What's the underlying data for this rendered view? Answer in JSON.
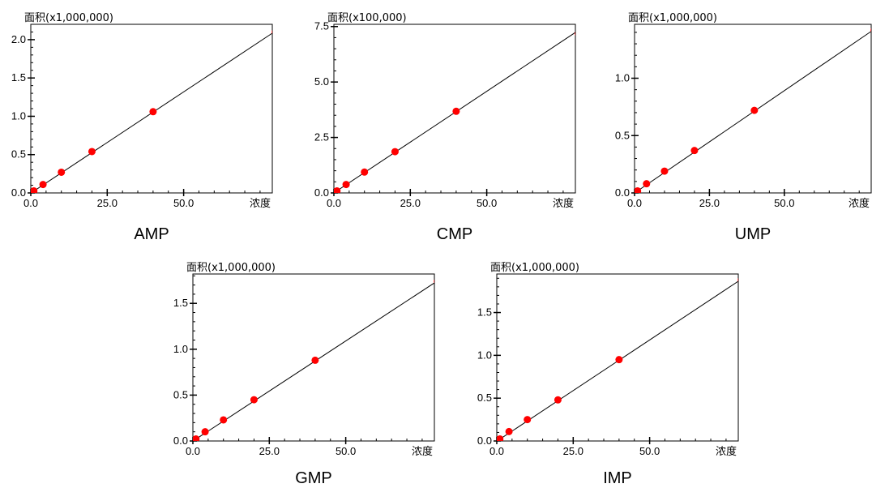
{
  "colors": {
    "point": "#ff0000",
    "line": "#000000",
    "axis": "#000000",
    "background": "#ffffff"
  },
  "chart_data": [
    {
      "type": "scatter",
      "title": "AMP",
      "ylabel": "面积(x1,000,000)",
      "xlabel": "浓度",
      "xlim": [
        0,
        79
      ],
      "ylim": [
        0,
        2.2
      ],
      "xticks": [
        0,
        25,
        50
      ],
      "xtick_labels": [
        "0.0",
        "25.0",
        "50.0"
      ],
      "yticks": [
        0,
        0.5,
        1.0,
        1.5,
        2.0
      ],
      "ytick_labels": [
        "0.0",
        "0.5",
        "1.0",
        "1.5",
        "2.0"
      ],
      "series": [
        {
          "x": [
            0.1,
            0.5,
            1.0,
            4.0,
            10.0,
            20.0,
            40.0,
            80.0
          ],
          "y": [
            0.003,
            0.013,
            0.027,
            0.11,
            0.27,
            0.54,
            1.06,
            2.1
          ]
        }
      ],
      "fit_line": {
        "x": [
          -2,
          83
        ],
        "y": [
          -0.055,
          2.19
        ]
      }
    },
    {
      "type": "scatter",
      "title": "CMP",
      "ylabel": "面积(x100,000)",
      "xlabel": "浓度",
      "xlim": [
        0,
        79
      ],
      "ylim": [
        0,
        7.6
      ],
      "xticks": [
        0,
        25,
        50
      ],
      "xtick_labels": [
        "0.0",
        "25.0",
        "50.0"
      ],
      "yticks": [
        0,
        2.5,
        5.0,
        7.5
      ],
      "ytick_labels": [
        "0.0",
        "2.5",
        "5.0",
        "7.5"
      ],
      "series": [
        {
          "x": [
            0.1,
            0.5,
            1.0,
            4.0,
            10.0,
            20.0,
            40.0,
            80.0
          ],
          "y": [
            0.01,
            0.05,
            0.09,
            0.38,
            0.94,
            1.86,
            3.68,
            7.18
          ]
        }
      ],
      "fit_line": {
        "x": [
          -2,
          83
        ],
        "y": [
          -0.18,
          7.6
        ]
      }
    },
    {
      "type": "scatter",
      "title": "UMP",
      "ylabel": "面积(x1,000,000)",
      "xlabel": "浓度",
      "xlim": [
        0,
        79
      ],
      "ylim": [
        0,
        1.47
      ],
      "xticks": [
        0,
        25,
        50
      ],
      "xtick_labels": [
        "0.0",
        "25.0",
        "50.0"
      ],
      "yticks": [
        0,
        0.5,
        1.0
      ],
      "ytick_labels": [
        "0.0",
        "0.5",
        "1.0"
      ],
      "series": [
        {
          "x": [
            0.1,
            0.5,
            1.0,
            4.0,
            10.0,
            20.0,
            40.0,
            80.0
          ],
          "y": [
            0.002,
            0.009,
            0.018,
            0.08,
            0.19,
            0.37,
            0.72,
            1.42
          ]
        }
      ],
      "fit_line": {
        "x": [
          -2,
          83
        ],
        "y": [
          -0.036,
          1.48
        ]
      }
    },
    {
      "type": "scatter",
      "title": "GMP",
      "ylabel": "面积(x1,000,000)",
      "xlabel": "浓度",
      "xlim": [
        0,
        79
      ],
      "ylim": [
        0,
        1.82
      ],
      "xticks": [
        0,
        25,
        50
      ],
      "xtick_labels": [
        "0.0",
        "25.0",
        "50.0"
      ],
      "yticks": [
        0,
        0.5,
        1.0,
        1.5
      ],
      "ytick_labels": [
        "0.0",
        "0.5",
        "1.0",
        "1.5"
      ],
      "series": [
        {
          "x": [
            0.1,
            0.5,
            1.0,
            4.0,
            10.0,
            20.0,
            40.0,
            80.0
          ],
          "y": [
            0.003,
            0.011,
            0.022,
            0.1,
            0.23,
            0.45,
            0.88,
            1.74
          ]
        }
      ],
      "fit_line": {
        "x": [
          -2,
          83
        ],
        "y": [
          -0.045,
          1.81
        ]
      }
    },
    {
      "type": "scatter",
      "title": "IMP",
      "ylabel": "面积(x1,000,000)",
      "xlabel": "浓度",
      "xlim": [
        0,
        79
      ],
      "ylim": [
        0,
        1.95
      ],
      "xticks": [
        0,
        25,
        50
      ],
      "xtick_labels": [
        "0.0",
        "25.0",
        "50.0"
      ],
      "yticks": [
        0,
        0.5,
        1.0,
        1.5
      ],
      "ytick_labels": [
        "0.0",
        "0.5",
        "1.0",
        "1.5"
      ],
      "series": [
        {
          "x": [
            0.1,
            0.5,
            1.0,
            4.0,
            10.0,
            20.0,
            40.0,
            80.0
          ],
          "y": [
            0.003,
            0.012,
            0.024,
            0.11,
            0.25,
            0.48,
            0.95,
            1.88
          ]
        }
      ],
      "fit_line": {
        "x": [
          -2,
          83
        ],
        "y": [
          -0.05,
          1.96
        ]
      }
    }
  ]
}
